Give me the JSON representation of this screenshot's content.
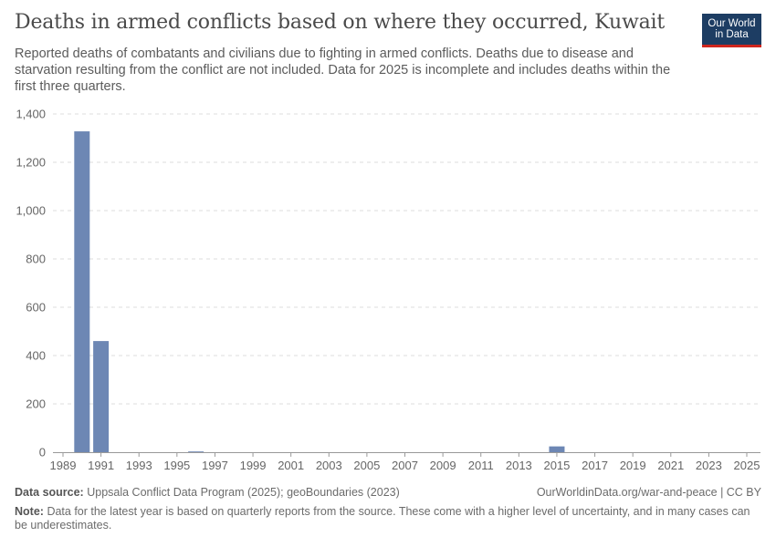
{
  "header": {
    "title": "Deaths in armed conflicts based on where they occurred, Kuwait",
    "subtitle": "Reported deaths of combatants and civilians due to fighting in armed conflicts. Deaths due to disease and starvation resulting from the conflict are not included. Data for 2025 is incomplete and includes deaths within the first three quarters."
  },
  "logo": {
    "line1": "Our World",
    "line2": "in Data"
  },
  "footer": {
    "source_label": "Data source:",
    "source_text": "Uppsala Conflict Data Program (2025); geoBoundaries (2023)",
    "license": "OurWorldinData.org/war-and-peace | CC BY",
    "note_label": "Note:",
    "note_text": "Data for the latest year is based on quarterly reports from the source. These come with a higher level of uncertainty, and in many cases can be underestimates."
  },
  "colors": {
    "bar": "#6d87b4",
    "grid": "#dddddd",
    "axis": "#999999"
  },
  "chart_data": {
    "type": "bar",
    "title": "Deaths in armed conflicts based on where they occurred, Kuwait",
    "xlabel": "",
    "ylabel": "",
    "ylim": [
      0,
      1400
    ],
    "yticks": [
      0,
      200,
      400,
      600,
      800,
      1000,
      1200,
      1400
    ],
    "ytick_labels": [
      "0",
      "200",
      "400",
      "600",
      "800",
      "1,000",
      "1,200",
      "1,400"
    ],
    "xlim": [
      1989,
      2025
    ],
    "xticks": [
      "1989",
      "1991",
      "1993",
      "1995",
      "1997",
      "1999",
      "2001",
      "2003",
      "2005",
      "2007",
      "2009",
      "2011",
      "2013",
      "2015",
      "2017",
      "2019",
      "2021",
      "2023",
      "2025"
    ],
    "grid": true,
    "series": [
      {
        "name": "Kuwait",
        "x": [
          1990,
          1991,
          1996,
          2015
        ],
        "values": [
          1328,
          460,
          1,
          24
        ]
      }
    ]
  }
}
